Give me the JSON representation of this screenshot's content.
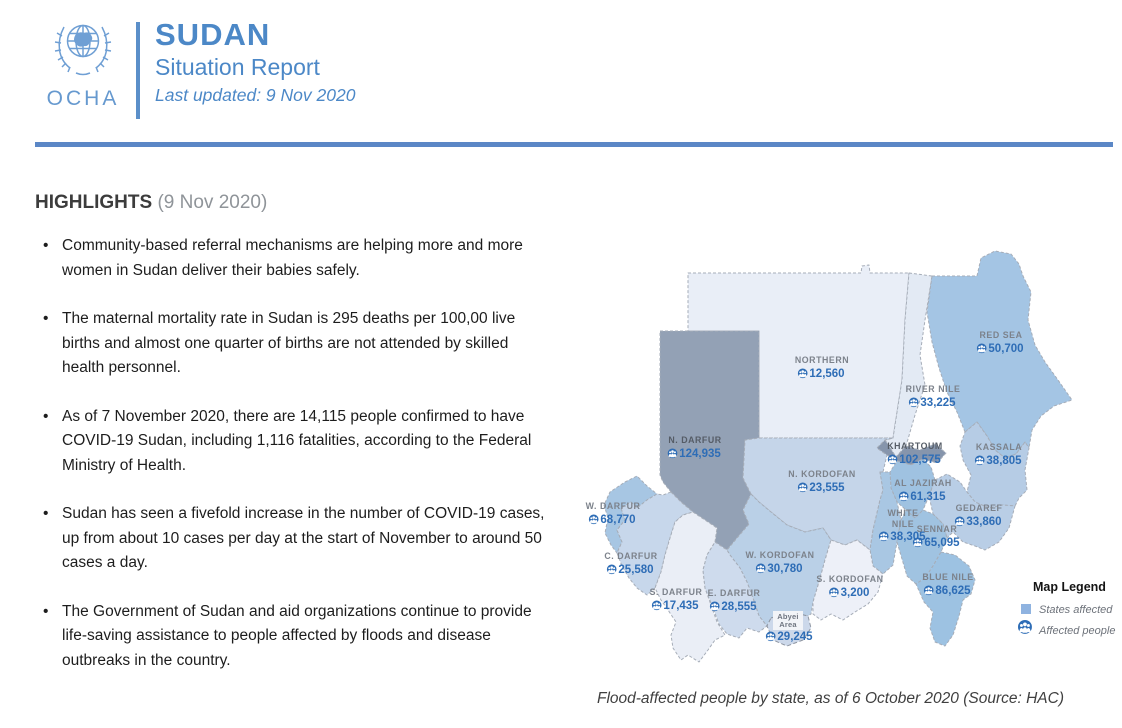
{
  "header": {
    "org": "OCHA",
    "title": "SUDAN",
    "subtitle": "Situation Report",
    "last_updated": "Last updated: 9 Nov 2020",
    "accent_color": "#5b8fc9"
  },
  "highlights": {
    "title": "HIGHLIGHTS",
    "date_suffix": "(9 Nov 2020)",
    "bullets": [
      "Community-based referral mechanisms are helping more and more women in Sudan deliver their babies safely.",
      "The maternal mortality rate in Sudan is 295 deaths per 100,00 live births and almost one quarter of births are not attended by skilled health personnel.",
      "As of 7 November 2020, there are 14,115 people confirmed to have COVID-19 Sudan, including 1,116 fatalities, according to the Federal Ministry of Health.",
      "Sudan has seen a fivefold increase in the number of COVID-19 cases, up from about 10 cases per day at the start of November to around 50 cases a day.",
      "The Government of Sudan and aid organizations continue to provide life-saving assistance to people affected by floods and disease outbreaks in the country."
    ]
  },
  "map": {
    "caption": "Flood-affected people by state, as of 6 October 2020 (Source: HAC)",
    "legend": {
      "title": "Map Legend",
      "states_label": "States affected",
      "people_label": "Affected people",
      "square_color": "#8fb3e0",
      "icon_color": "#2e6db6"
    },
    "states": [
      {
        "name": "NORTHERN",
        "value": "12,560",
        "color": "#e9eef7"
      },
      {
        "name": "RIVER NILE",
        "value": "33,225",
        "color": "#e3eaf4"
      },
      {
        "name": "RED SEA",
        "value": "50,700",
        "color": "#a4c5e4"
      },
      {
        "name": "N. DARFUR",
        "value": "124,935",
        "color": "#93a1b5"
      },
      {
        "name": "KHARTOUM",
        "value": "102,575",
        "color": "#8695ac"
      },
      {
        "name": "KASSALA",
        "value": "38,805",
        "color": "#b6cce5"
      },
      {
        "name": "AL JAZIRAH",
        "value": "61,315",
        "color": "#9fc2e1"
      },
      {
        "name": "GEDAREF",
        "value": "33,860",
        "color": "#b9cee6"
      },
      {
        "name_line1": "WHITE",
        "name_line2": "NILE",
        "value": "38,305",
        "color": "#a9c7e3"
      },
      {
        "name": "SENNAR",
        "value": "65,095",
        "color": "#a0c3e1"
      },
      {
        "name": "BLUE NILE",
        "value": "86,625",
        "color": "#9dc2e2"
      },
      {
        "name": "N. KORDOFAN",
        "value": "23,555",
        "color": "#c5d5e9"
      },
      {
        "name": "W. KORDOFAN",
        "value": "30,780",
        "color": "#bad0e7"
      },
      {
        "name": "S. KORDOFAN",
        "value": "3,200",
        "color": "#edf0f8"
      },
      {
        "name_line1": "Abyei",
        "name_line2": "Area",
        "value": "29,245",
        "color": "#ccd8ea"
      },
      {
        "name": "W. DARFUR",
        "value": "68,770",
        "color": "#a7c6e3"
      },
      {
        "name": "C. DARFUR",
        "value": "25,580",
        "color": "#c7d7eb"
      },
      {
        "name": "S. DARFUR",
        "value": "17,435",
        "color": "#eaeef6"
      },
      {
        "name": "E. DARFUR",
        "value": "28,555",
        "color": "#cedbed"
      }
    ]
  }
}
